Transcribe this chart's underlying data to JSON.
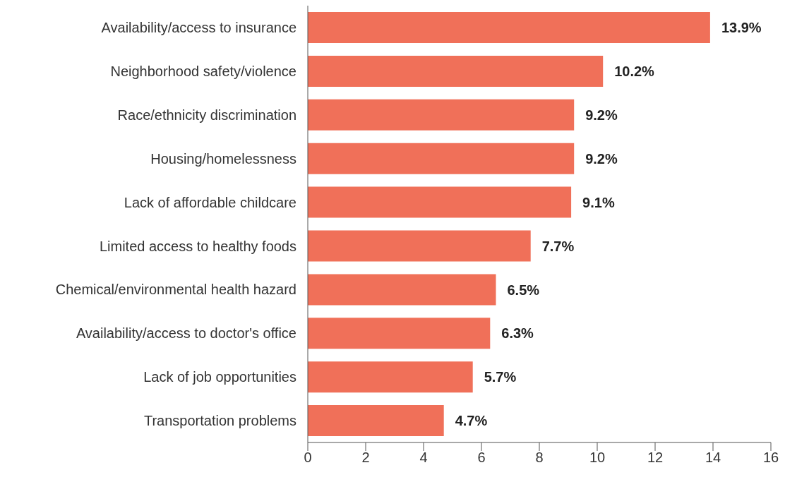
{
  "chart_data": {
    "type": "bar",
    "orientation": "horizontal",
    "categories": [
      "Availability/access to insurance",
      "Neighborhood safety/violence",
      "Race/ethnicity discrimination",
      "Housing/homelessness",
      "Lack of affordable childcare",
      "Limited access to healthy foods",
      "Chemical/environmental health hazard",
      "Availability/access to doctor's office",
      "Lack of job opportunities",
      "Transportation problems"
    ],
    "values": [
      13.9,
      10.2,
      9.2,
      9.2,
      9.1,
      7.7,
      6.5,
      6.3,
      5.7,
      4.7
    ],
    "value_labels": [
      "13.9%",
      "10.2%",
      "9.2%",
      "9.2%",
      "9.1%",
      "7.7%",
      "6.5%",
      "6.3%",
      "5.7%",
      "4.7%"
    ],
    "color": "#f07059",
    "xlim": [
      0,
      16
    ],
    "xticks": [
      0,
      2,
      4,
      6,
      8,
      10,
      12,
      14,
      16
    ],
    "grid": false,
    "legend": false
  }
}
